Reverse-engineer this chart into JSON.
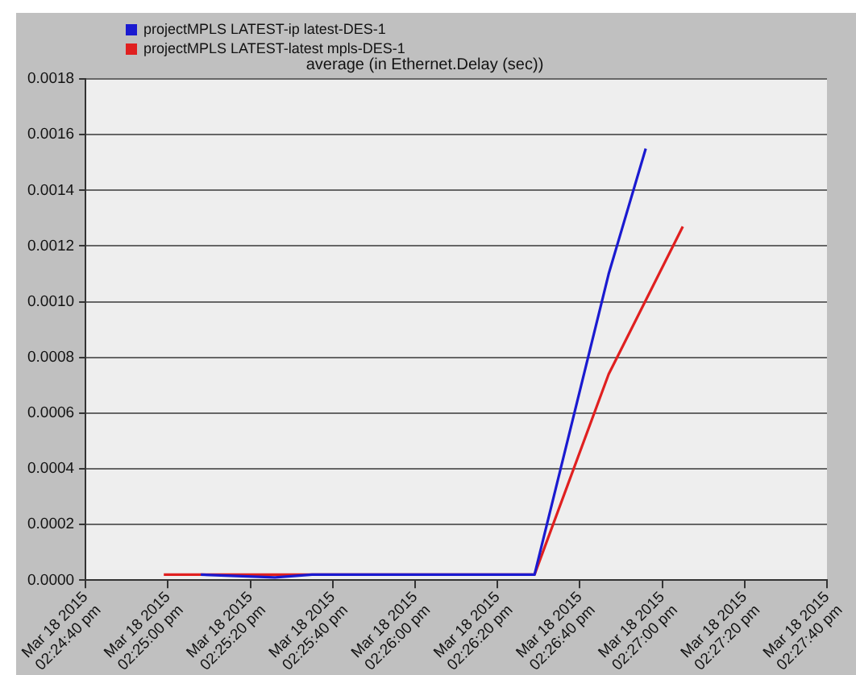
{
  "chart_data": {
    "type": "line",
    "title": "average (in Ethernet.Delay (sec))",
    "legend": "top left",
    "grid": "y",
    "marker": "none",
    "line_style": "solid",
    "xlim": [
      "2015-03-18T14:24:40",
      "2015-03-18T14:27:40"
    ],
    "xticks": [
      {
        "value": "2015-03-18T14:24:40",
        "label": "Mar 18 2015\n02:24:40 pm"
      },
      {
        "value": "2015-03-18T14:25:00",
        "label": "Mar 18 2015\n02:25:00 pm"
      },
      {
        "value": "2015-03-18T14:25:20",
        "label": "Mar 18 2015\n02:25:20 pm"
      },
      {
        "value": "2015-03-18T14:25:40",
        "label": "Mar 18 2015\n02:25:40 pm"
      },
      {
        "value": "2015-03-18T14:26:00",
        "label": "Mar 18 2015\n02:26:00 pm"
      },
      {
        "value": "2015-03-18T14:26:20",
        "label": "Mar 18 2015\n02:26:20 pm"
      },
      {
        "value": "2015-03-18T14:26:40",
        "label": "Mar 18 2015\n02:26:40 pm"
      },
      {
        "value": "2015-03-18T14:27:00",
        "label": "Mar 18 2015\n02:27:00 pm"
      },
      {
        "value": "2015-03-18T14:27:20",
        "label": "Mar 18 2015\n02:27:20 pm"
      },
      {
        "value": "2015-03-18T14:27:40",
        "label": "Mar 18 2015\n02:27:40 pm"
      }
    ],
    "ylim": [
      0,
      0.0018
    ],
    "yticks": [
      {
        "value": 0,
        "label": "0.0000"
      },
      {
        "value": 0.0002,
        "label": "0.0002"
      },
      {
        "value": 0.0004,
        "label": "0.0004"
      },
      {
        "value": 0.0006,
        "label": "0.0006"
      },
      {
        "value": 0.0008,
        "label": "0.0008"
      },
      {
        "value": 0.001,
        "label": "0.0010"
      },
      {
        "value": 0.0012,
        "label": "0.0012"
      },
      {
        "value": 0.0014,
        "label": "0.0014"
      },
      {
        "value": 0.0016,
        "label": "0.0016"
      },
      {
        "value": 0.0018,
        "label": "0.0018"
      }
    ],
    "series": [
      {
        "name": "projectMPLS LATEST-ip latest-DES-1",
        "color": "#1a1ad0",
        "x": [
          "2015-03-18T14:25:08",
          "2015-03-18T14:25:26",
          "2015-03-18T14:25:35",
          "2015-03-18T14:26:29",
          "2015-03-18T14:26:47",
          "2015-03-18T14:26:56"
        ],
        "values": [
          2e-05,
          1e-05,
          2e-05,
          2e-05,
          0.0011,
          0.00155
        ]
      },
      {
        "name": "projectMPLS LATEST-latest mpls-DES-1",
        "color": "#e02020",
        "x": [
          "2015-03-18T14:24:59",
          "2015-03-18T14:25:08",
          "2015-03-18T14:26:29",
          "2015-03-18T14:26:47",
          "2015-03-18T14:27:05"
        ],
        "values": [
          2e-05,
          2e-05,
          2e-05,
          0.00074,
          0.00127
        ]
      }
    ]
  }
}
